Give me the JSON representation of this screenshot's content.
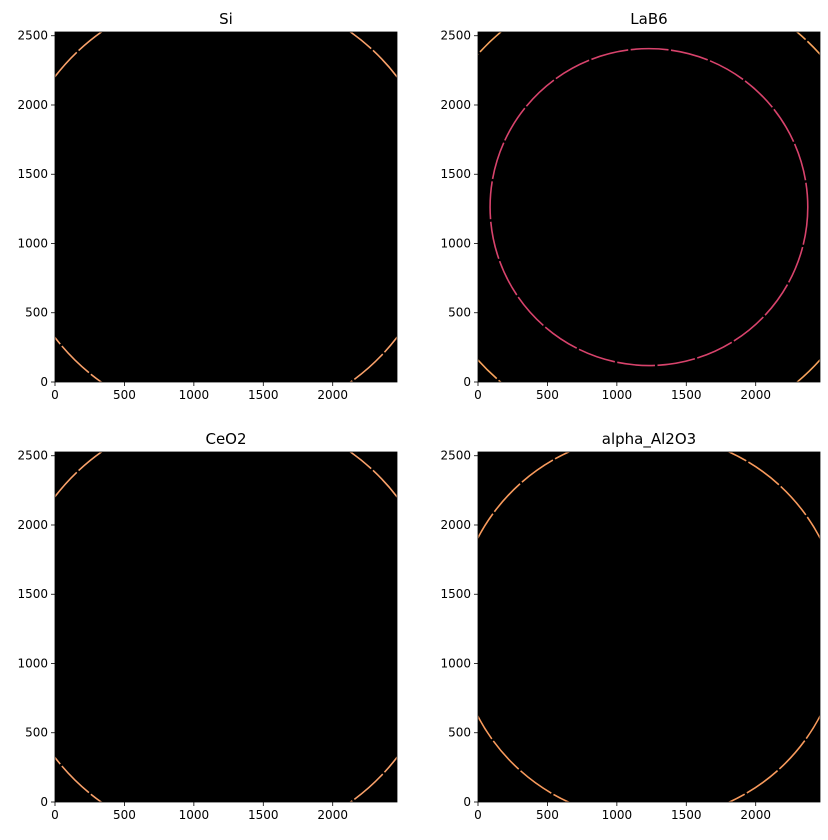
{
  "chart_data": [
    {
      "type": "heatmap",
      "title": "Si",
      "xlim": [
        0,
        2463
      ],
      "ylim": [
        0,
        2527
      ],
      "origin": "lower",
      "background": "#000000",
      "xticks": [
        0,
        500,
        1000,
        1500,
        2000
      ],
      "yticks": [
        0,
        500,
        1000,
        1500,
        2000,
        2500
      ],
      "rings": [
        {
          "center": [
            1231,
            1263
          ],
          "radius": 1550,
          "color": "#f9a16a"
        }
      ]
    },
    {
      "type": "heatmap",
      "title": "LaB6",
      "xlim": [
        0,
        2463
      ],
      "ylim": [
        0,
        2527
      ],
      "origin": "lower",
      "background": "#000000",
      "xticks": [
        0,
        500,
        1000,
        1500,
        2000
      ],
      "yticks": [
        0,
        500,
        1000,
        1500,
        2000,
        2500
      ],
      "rings": [
        {
          "center": [
            1231,
            1263
          ],
          "radius": 1144,
          "color": "#d8436c"
        },
        {
          "center": [
            1231,
            1263
          ],
          "radius": 1654,
          "color": "#f7a35c"
        }
      ]
    },
    {
      "type": "heatmap",
      "title": "CeO2",
      "xlim": [
        0,
        2463
      ],
      "ylim": [
        0,
        2527
      ],
      "origin": "lower",
      "background": "#000000",
      "xticks": [
        0,
        500,
        1000,
        1500,
        2000
      ],
      "yticks": [
        0,
        500,
        1000,
        1500,
        2000,
        2500
      ],
      "rings": [
        {
          "center": [
            1231,
            1263
          ],
          "radius": 1550,
          "color": "#f9a16a"
        }
      ]
    },
    {
      "type": "heatmap",
      "title": "alpha_Al2O3",
      "xlim": [
        0,
        2463
      ],
      "ylim": [
        0,
        2527
      ],
      "origin": "lower",
      "background": "#000000",
      "xticks": [
        0,
        500,
        1000,
        1500,
        2000
      ],
      "yticks": [
        0,
        500,
        1000,
        1500,
        2000,
        2500
      ],
      "rings": [
        {
          "center": [
            1231,
            1263
          ],
          "radius": 1390,
          "color": "#f89a5c"
        }
      ]
    }
  ]
}
